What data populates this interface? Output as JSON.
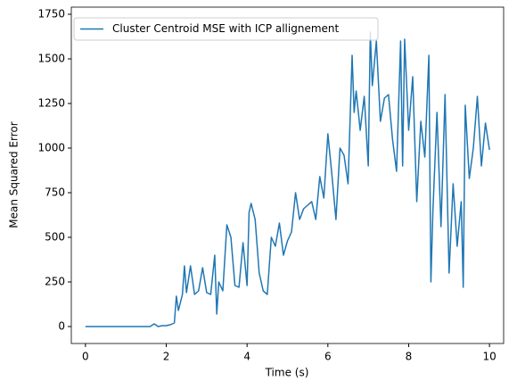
{
  "chart_data": {
    "type": "line",
    "xlabel": "Time (s)",
    "ylabel": "Mean Squared Error",
    "x": [
      0,
      0.1,
      0.2,
      0.3,
      0.4,
      0.5,
      0.6,
      0.7,
      0.8,
      0.9,
      1.0,
      1.1,
      1.2,
      1.3,
      1.4,
      1.5,
      1.6,
      1.7,
      1.8,
      1.9,
      2.0,
      2.1,
      2.2,
      2.25,
      2.3,
      2.4,
      2.45,
      2.5,
      2.6,
      2.7,
      2.8,
      2.9,
      3.0,
      3.1,
      3.2,
      3.25,
      3.3,
      3.4,
      3.5,
      3.6,
      3.7,
      3.8,
      3.9,
      4.0,
      4.05,
      4.1,
      4.2,
      4.3,
      4.4,
      4.5,
      4.6,
      4.7,
      4.8,
      4.9,
      5.0,
      5.1,
      5.2,
      5.3,
      5.4,
      5.5,
      5.6,
      5.7,
      5.8,
      5.9,
      6.0,
      6.1,
      6.2,
      6.3,
      6.4,
      6.5,
      6.6,
      6.65,
      6.7,
      6.8,
      6.9,
      7.0,
      7.05,
      7.1,
      7.2,
      7.3,
      7.4,
      7.5,
      7.6,
      7.7,
      7.8,
      7.85,
      7.9,
      8.0,
      8.1,
      8.2,
      8.3,
      8.4,
      8.5,
      8.55,
      8.6,
      8.7,
      8.8,
      8.9,
      9.0,
      9.1,
      9.2,
      9.3,
      9.35,
      9.4,
      9.5,
      9.6,
      9.7,
      9.8,
      9.9,
      10.0
    ],
    "series": [
      {
        "name": "Cluster Centroid MSE with ICP allignement",
        "color": "#1f77b4",
        "values": [
          0,
          0,
          0,
          0,
          0,
          0,
          0,
          0,
          0,
          0,
          0,
          0,
          0,
          0,
          0,
          0,
          0,
          15,
          0,
          5,
          5,
          10,
          20,
          170,
          90,
          180,
          340,
          190,
          340,
          180,
          200,
          330,
          190,
          180,
          400,
          70,
          250,
          200,
          570,
          500,
          230,
          220,
          470,
          230,
          640,
          690,
          600,
          300,
          200,
          180,
          500,
          450,
          580,
          400,
          480,
          530,
          750,
          600,
          660,
          680,
          700,
          600,
          840,
          720,
          1080,
          850,
          600,
          1000,
          960,
          800,
          1520,
          1200,
          1320,
          1100,
          1290,
          900,
          1650,
          1350,
          1600,
          1150,
          1280,
          1300,
          1050,
          870,
          1600,
          900,
          1610,
          1100,
          1400,
          700,
          1150,
          950,
          1520,
          250,
          650,
          1200,
          560,
          1300,
          300,
          800,
          450,
          700,
          220,
          1240,
          830,
          1000,
          1290,
          900,
          1140,
          990
        ]
      }
    ],
    "xlim": [
      -0.35,
      10.35
    ],
    "ylim": [
      -95,
      1790
    ],
    "xticks": [
      0,
      2,
      4,
      6,
      8,
      10
    ],
    "yticks": [
      0,
      250,
      500,
      750,
      1000,
      1250,
      1500,
      1750
    ],
    "legend": "upper left"
  }
}
